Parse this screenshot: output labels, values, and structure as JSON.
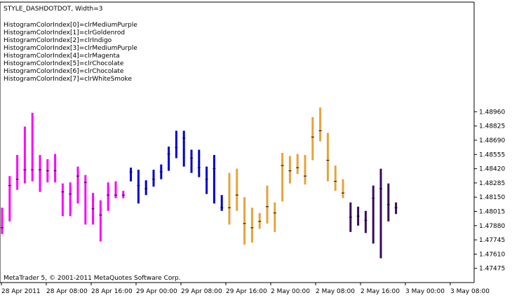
{
  "header": {
    "title": "STYLE_DASHDOTDOT,  Width=3",
    "color_index_lines": [
      "HistogramColorIndex[0]=clrMediumPurple",
      "HistogramColorIndex[1]=clrGoldenrod",
      "HistogramColorIndex[2]=clrIndigo",
      "HistogramColorIndex[3]=clrMediumPurple",
      "HistogramColorIndex[4]=clrMagenta",
      "HistogramColorIndex[5]=clrChocolate",
      "HistogramColorIndex[6]=clrChocolate",
      "HistogramColorIndex[7]=clrWhiteSmoke"
    ]
  },
  "footer": {
    "copyright": "MetaTrader 5, © 2001-2011 MetaQuotes Software Corp."
  },
  "chart_data": {
    "type": "bar",
    "title": "STYLE_DASHDOTDOT,  Width=3",
    "ylim": [
      1.4734,
      1.5
    ],
    "grid": false,
    "y_tick_labels": [
      "1.48960",
      "1.48825",
      "1.48690",
      "1.48555",
      "1.48420",
      "1.48285",
      "1.48150",
      "1.48015",
      "1.47880",
      "1.47745",
      "1.47610",
      "1.47475"
    ],
    "x_tick_labels": [
      "28 Apr 2011",
      "28 Apr 08:00",
      "28 Apr 16:00",
      "29 Apr 00:00",
      "29 Apr 08:00",
      "29 Apr 16:00",
      "2 May 00:00",
      "2 May 08:00",
      "2 May 16:00",
      "3 May 00:00",
      "3 May 08:00"
    ],
    "colors": {
      "magenta": "#FF00FF",
      "blue": "#0000CD",
      "goldenrod": "#E6A23C",
      "indigo": "#3A0A5E",
      "axis": "#000000"
    },
    "series": [
      {
        "color": "magenta",
        "bars": [
          {
            "x": 1,
            "low": 1.478,
            "high": 1.4805,
            "close": 1.4786
          },
          {
            "x": 2,
            "low": 1.4792,
            "high": 1.4835,
            "close": 1.4826
          },
          {
            "x": 3,
            "low": 1.4822,
            "high": 1.4855,
            "close": 1.4832
          },
          {
            "x": 4,
            "low": 1.4828,
            "high": 1.4882,
            "close": 1.4841
          },
          {
            "x": 5,
            "low": 1.483,
            "high": 1.4895,
            "close": 1.4841
          },
          {
            "x": 6,
            "low": 1.482,
            "high": 1.4855,
            "close": 1.4841
          },
          {
            "x": 7,
            "low": 1.4829,
            "high": 1.4851,
            "close": 1.484
          },
          {
            "x": 8,
            "low": 1.4829,
            "high": 1.4856,
            "close": 1.484
          },
          {
            "x": 9,
            "low": 1.4797,
            "high": 1.4828,
            "close": 1.482
          },
          {
            "x": 10,
            "low": 1.4797,
            "high": 1.4829,
            "close": 1.4818
          },
          {
            "x": 11,
            "low": 1.4809,
            "high": 1.4844,
            "close": 1.4835
          },
          {
            "x": 12,
            "low": 1.4789,
            "high": 1.4836,
            "close": 1.4829
          },
          {
            "x": 13,
            "low": 1.4789,
            "high": 1.4819,
            "close": 1.4804
          },
          {
            "x": 14,
            "low": 1.4773,
            "high": 1.4812,
            "close": 1.4798
          },
          {
            "x": 15,
            "low": 1.4802,
            "high": 1.4829,
            "close": 1.4817
          },
          {
            "x": 16,
            "low": 1.4814,
            "high": 1.483,
            "close": 1.4817
          },
          {
            "x": 17,
            "low": 1.4814,
            "high": 1.4821,
            "close": 1.4817
          }
        ]
      },
      {
        "color": "blue",
        "bars": [
          {
            "x": 18,
            "low": 1.483,
            "high": 1.4843,
            "close": 1.4839
          },
          {
            "x": 19,
            "low": 1.4809,
            "high": 1.4841,
            "close": 1.4826
          },
          {
            "x": 20,
            "low": 1.4817,
            "high": 1.4831,
            "close": 1.4823
          },
          {
            "x": 21,
            "low": 1.4825,
            "high": 1.4841,
            "close": 1.4832
          },
          {
            "x": 22,
            "low": 1.4832,
            "high": 1.4846,
            "close": 1.4839
          },
          {
            "x": 23,
            "low": 1.484,
            "high": 1.4863,
            "close": 1.4856
          },
          {
            "x": 24,
            "low": 1.4852,
            "high": 1.4878,
            "close": 1.4862
          },
          {
            "x": 25,
            "low": 1.4844,
            "high": 1.4878,
            "close": 1.4871
          },
          {
            "x": 26,
            "low": 1.4838,
            "high": 1.486,
            "close": 1.4852
          },
          {
            "x": 27,
            "low": 1.4834,
            "high": 1.486,
            "close": 1.4843
          },
          {
            "x": 28,
            "low": 1.4818,
            "high": 1.4844,
            "close": 1.4832
          },
          {
            "x": 29,
            "low": 1.4809,
            "high": 1.4855,
            "close": 1.4842
          },
          {
            "x": 30,
            "low": 1.4802,
            "high": 1.4817,
            "close": 1.4805
          }
        ]
      },
      {
        "color": "goldenrod",
        "bars": [
          {
            "x": 31,
            "low": 1.4789,
            "high": 1.4838,
            "close": 1.4805
          },
          {
            "x": 32,
            "low": 1.4802,
            "high": 1.4842,
            "close": 1.4817
          },
          {
            "x": 33,
            "low": 1.477,
            "high": 1.4815,
            "close": 1.479
          },
          {
            "x": 34,
            "low": 1.4772,
            "high": 1.4805,
            "close": 1.4786
          },
          {
            "x": 35,
            "low": 1.4785,
            "high": 1.48,
            "close": 1.4792
          },
          {
            "x": 36,
            "low": 1.479,
            "high": 1.4826,
            "close": 1.4806
          },
          {
            "x": 37,
            "low": 1.4782,
            "high": 1.481,
            "close": 1.48
          },
          {
            "x": 38,
            "low": 1.4811,
            "high": 1.4857,
            "close": 1.4845
          },
          {
            "x": 39,
            "low": 1.4828,
            "high": 1.4854,
            "close": 1.484
          },
          {
            "x": 40,
            "low": 1.4837,
            "high": 1.4856,
            "close": 1.4843
          },
          {
            "x": 41,
            "low": 1.4827,
            "high": 1.4855,
            "close": 1.4835
          },
          {
            "x": 42,
            "low": 1.485,
            "high": 1.4891,
            "close": 1.4872
          },
          {
            "x": 43,
            "low": 1.4868,
            "high": 1.49,
            "close": 1.4878
          },
          {
            "x": 44,
            "low": 1.483,
            "high": 1.4876,
            "close": 1.485
          },
          {
            "x": 45,
            "low": 1.4821,
            "high": 1.4845,
            "close": 1.483
          },
          {
            "x": 46,
            "low": 1.4814,
            "high": 1.4832,
            "close": 1.4819
          }
        ]
      },
      {
        "color": "indigo",
        "bars": [
          {
            "x": 47,
            "low": 1.4782,
            "high": 1.481,
            "close": 1.4796
          },
          {
            "x": 48,
            "low": 1.4788,
            "high": 1.4806,
            "close": 1.4797
          },
          {
            "x": 49,
            "low": 1.4781,
            "high": 1.4802,
            "close": 1.4793
          },
          {
            "x": 50,
            "low": 1.4771,
            "high": 1.4826,
            "close": 1.4814
          },
          {
            "x": 51,
            "low": 1.4757,
            "high": 1.4842,
            "close": 1.4823
          },
          {
            "x": 52,
            "low": 1.4792,
            "high": 1.4828,
            "close": 1.4808
          },
          {
            "x": 53,
            "low": 1.4799,
            "high": 1.481,
            "close": 1.4805
          }
        ]
      }
    ]
  }
}
